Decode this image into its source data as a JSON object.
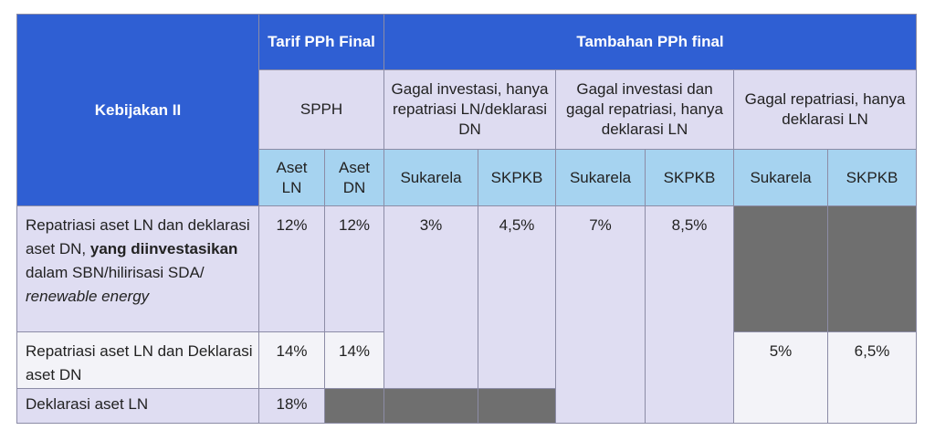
{
  "header": {
    "kebijakan": "Kebijakan II",
    "tarif": "Tarif PPh Final",
    "tambahan": "Tambahan PPh final",
    "spph": "SPPH",
    "groups": [
      "Gagal investasi, hanya repatriasi LN/deklarasi DN",
      "Gagal investasi dan gagal repatriasi, hanya deklarasi LN",
      "Gagal repatriasi, hanya deklarasi LN"
    ],
    "subcols": [
      "Aset LN",
      "Aset DN",
      "Sukarela",
      "SKPKB",
      "Sukarela",
      "SKPKB",
      "Sukarela",
      "SKPKB"
    ]
  },
  "rows": [
    {
      "label": [
        "Repatriasi aset LN dan deklarasi aset DN, ",
        "yang diinvestasikan",
        " dalam SBN/hilirisasi SDA/ ",
        "renewable energy"
      ],
      "cells": [
        "12%",
        "12%",
        "3%",
        "4,5%",
        "7%",
        "8,5%"
      ]
    },
    {
      "label": "Repatriasi aset LN dan Deklarasi aset DN",
      "cells": [
        "14%",
        "14%",
        "5%",
        "6,5%"
      ]
    },
    {
      "label": "Deklarasi aset LN",
      "cells": [
        "18%"
      ]
    }
  ]
}
